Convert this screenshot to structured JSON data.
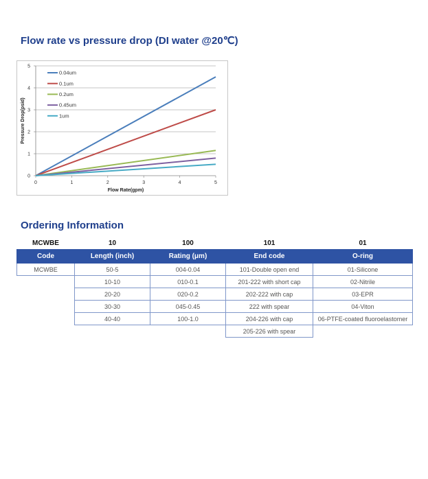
{
  "chart_section": {
    "title": "Flow rate vs pressure drop (DI water @20℃)"
  },
  "chart_data": {
    "type": "line",
    "title": "",
    "xlabel": "Flow Rate(gpm)",
    "ylabel": "Pressure Drop(psid)",
    "xlim": [
      0,
      5
    ],
    "ylim": [
      0,
      5
    ],
    "x_ticks": [
      "0",
      "1",
      "2",
      "3",
      "4",
      "5"
    ],
    "y_ticks": [
      "0",
      "1",
      "2",
      "3",
      "4",
      "5"
    ],
    "grid": "horizontal",
    "legend": "top-left",
    "series": [
      {
        "name": "0.04um",
        "color": "#4a7ebb",
        "x": [
          0,
          5
        ],
        "y": [
          0,
          4.5
        ]
      },
      {
        "name": "0.1um",
        "color": "#be4b48",
        "x": [
          0,
          5
        ],
        "y": [
          0,
          3.0
        ]
      },
      {
        "name": "0.2um",
        "color": "#98b954",
        "x": [
          0,
          5
        ],
        "y": [
          0,
          1.15
        ]
      },
      {
        "name": "0.45um",
        "color": "#7d60a0",
        "x": [
          0,
          5
        ],
        "y": [
          0,
          0.8
        ]
      },
      {
        "name": "1um",
        "color": "#46aac5",
        "x": [
          0,
          5
        ],
        "y": [
          0,
          0.52
        ]
      }
    ]
  },
  "ordering": {
    "title": "Ordering Information",
    "sample": [
      "MCWBE",
      "10",
      "100",
      "101",
      "01"
    ],
    "headers": [
      "Code",
      "Length (inch)",
      "Rating  (μm)",
      "End code",
      "O-ring"
    ],
    "rows": [
      [
        "MCWBE",
        "50-5",
        "004-0.04",
        "101-Double open end",
        "01-Silicone"
      ],
      [
        "",
        "10-10",
        "010-0.1",
        "201-222 with short cap",
        "02-Nitrile"
      ],
      [
        "",
        "20-20",
        "020-0.2",
        "202-222 with cap",
        "03-EPR"
      ],
      [
        "",
        "30-30",
        "045-0.45",
        "222 with spear",
        "04-Viton"
      ],
      [
        "",
        "40-40",
        "100-1.0",
        "204-226 with cap",
        "06-PTFE-coated fluoroelastomer"
      ],
      [
        "",
        "",
        "",
        "205-226 with spear",
        ""
      ]
    ],
    "header_color": "#2e53a4"
  }
}
